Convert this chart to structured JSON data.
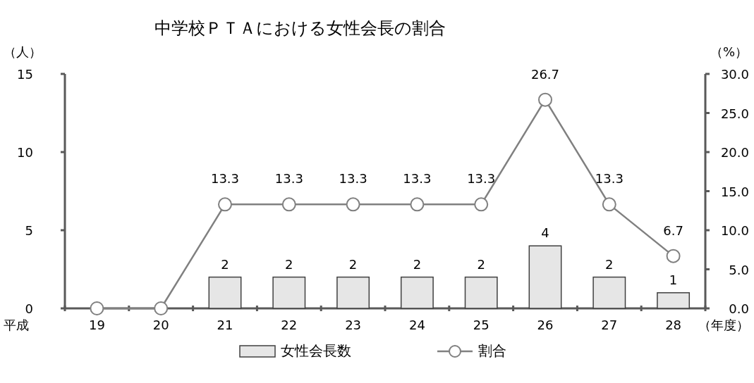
{
  "chart_data": {
    "type": "bar",
    "title": "中学校ＰＴＡにおける女性会長の割合",
    "categories": [
      "19",
      "20",
      "21",
      "22",
      "23",
      "24",
      "25",
      "26",
      "27",
      "28"
    ],
    "xlabel": "（年度）",
    "ylabel": "（人）",
    "y2label": "（%）",
    "annotations": [
      "平成"
    ],
    "series": [
      {
        "name": "女性会長数",
        "color": "#e6e6e6",
        "values": [
          0,
          0,
          2,
          2,
          2,
          2,
          2,
          4,
          2,
          1
        ],
        "value_labels": [
          null,
          null,
          "2",
          "2",
          "2",
          "2",
          "2",
          "4",
          "2",
          "1"
        ]
      },
      {
        "type": "line",
        "name": "割合",
        "color": "#808080",
        "axis": "y2",
        "marker": "circle",
        "values": [
          0,
          0,
          13.3,
          13.3,
          13.3,
          13.3,
          13.3,
          26.7,
          13.3,
          6.7
        ],
        "value_labels": [
          null,
          null,
          "13.3",
          "13.3",
          "13.3",
          "13.3",
          "13.3",
          "26.7",
          "13.3",
          "6.7"
        ]
      }
    ],
    "ylim": [
      0,
      15
    ],
    "yticks": [
      0,
      5,
      10,
      15
    ],
    "y2lim": [
      0,
      30
    ],
    "y2ticks": [
      {
        "value": 0,
        "label": "0.0"
      },
      {
        "value": 5,
        "label": "5.0"
      },
      {
        "value": 10,
        "label": "10.0"
      },
      {
        "value": 15,
        "label": "15.0"
      },
      {
        "value": 20,
        "label": "20.0"
      },
      {
        "value": 25,
        "label": "25.0"
      },
      {
        "value": 30,
        "label": "30.0"
      }
    ],
    "legend": "bottom"
  }
}
